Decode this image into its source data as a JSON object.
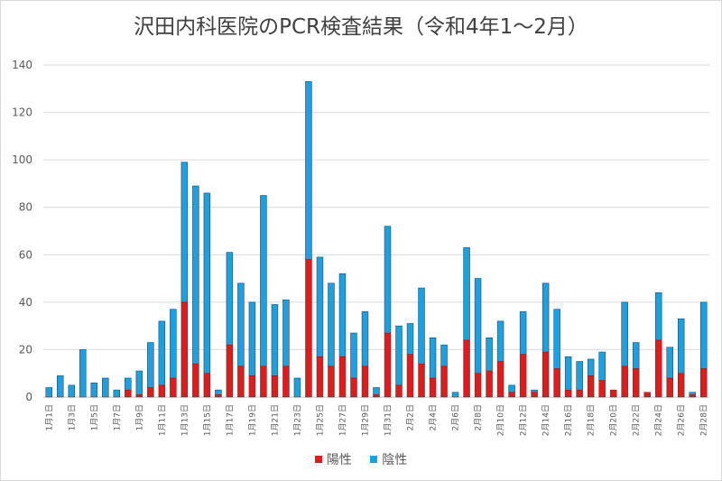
{
  "chart_data": {
    "type": "bar",
    "stacked": true,
    "title": "沢田内科医院のPCR検査結果（令和4年1～2月）",
    "ylim": [
      0,
      140
    ],
    "yticks": [
      0,
      20,
      40,
      60,
      80,
      100,
      120,
      140
    ],
    "grid": true,
    "legend_position": "bottom",
    "categories": [
      "1月1日",
      "1月2日",
      "1月3日",
      "1月4日",
      "1月5日",
      "1月6日",
      "1月7日",
      "1月8日",
      "1月9日",
      "1月10日",
      "1月11日",
      "1月12日",
      "1月13日",
      "1月14日",
      "1月15日",
      "1月16日",
      "1月17日",
      "1月18日",
      "1月19日",
      "1月20日",
      "1月21日",
      "1月22日",
      "1月23日",
      "1月24日",
      "1月25日",
      "1月26日",
      "1月27日",
      "1月28日",
      "1月29日",
      "1月30日",
      "1月31日",
      "2月1日",
      "2月2日",
      "2月3日",
      "2月4日",
      "2月5日",
      "2月6日",
      "2月7日",
      "2月8日",
      "2月9日",
      "2月10日",
      "2月11日",
      "2月12日",
      "2月13日",
      "2月14日",
      "2月15日",
      "2月16日",
      "2月17日",
      "2月18日",
      "2月19日",
      "2月20日",
      "2月21日",
      "2月22日",
      "2月23日",
      "2月24日",
      "2月25日",
      "2月26日",
      "2月27日",
      "2月28日"
    ],
    "series": [
      {
        "name": "陽性",
        "color": "#e31a1c",
        "values": [
          0,
          0,
          0,
          0,
          0,
          0,
          0,
          3,
          1,
          4,
          5,
          8,
          40,
          14,
          10,
          1,
          22,
          13,
          9,
          13,
          9,
          13,
          0,
          58,
          17,
          13,
          17,
          8,
          13,
          1,
          27,
          5,
          18,
          14,
          8,
          13,
          0,
          24,
          10,
          11,
          15,
          2,
          18,
          2,
          19,
          12,
          3,
          3,
          9,
          7,
          3,
          13,
          12,
          2,
          24,
          8,
          10,
          1,
          12
        ]
      },
      {
        "name": "陰性",
        "color": "#1ba1e2",
        "values": [
          4,
          9,
          5,
          20,
          6,
          8,
          3,
          5,
          10,
          19,
          27,
          29,
          59,
          75,
          76,
          2,
          39,
          35,
          31,
          72,
          30,
          28,
          8,
          75,
          42,
          35,
          35,
          19,
          23,
          3,
          45,
          25,
          13,
          32,
          17,
          9,
          2,
          39,
          40,
          14,
          17,
          3,
          18,
          1,
          29,
          25,
          14,
          12,
          7,
          12,
          0,
          27,
          11,
          0,
          20,
          13,
          23,
          1,
          28
        ]
      }
    ]
  }
}
